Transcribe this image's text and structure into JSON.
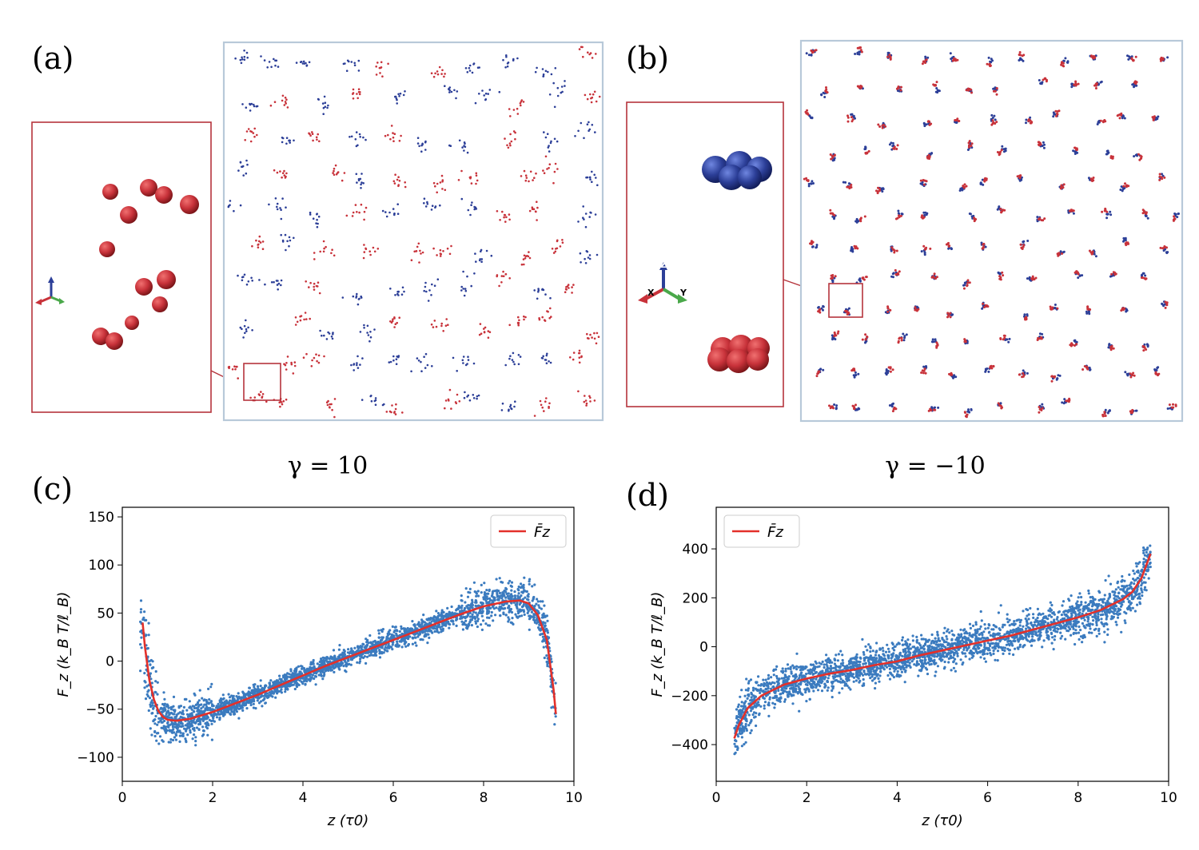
{
  "panels": {
    "a": {
      "label": "(a)",
      "gamma_label": "γ = 10"
    },
    "b": {
      "label": "(b)",
      "gamma_label": "γ = −10"
    },
    "c": {
      "label": "(c)"
    },
    "d": {
      "label": "(d)"
    }
  },
  "triad": {
    "x": "X",
    "y": "Y",
    "z": "Z"
  },
  "colors": {
    "red_ion": "#c8323a",
    "blue_ion": "#2c3f98",
    "scatter": "#3b7bbf",
    "mean_line": "#e3302a",
    "box_frame": "#b8c9d9",
    "inset_frame": "#b5343c"
  },
  "chart_data": [
    {
      "type": "scatter",
      "panel": "(c)",
      "xlabel": "z (τ0)",
      "ylabel": "F_z (k_B T/ℓ_B)",
      "xlim": [
        0,
        10
      ],
      "ylim": [
        -125,
        160
      ],
      "xticks": [
        "0",
        "2",
        "4",
        "6",
        "8",
        "10"
      ],
      "yticks": [
        "150",
        "100",
        "50",
        "0",
        "−50",
        "−100"
      ],
      "ytick_values": [
        150,
        100,
        50,
        0,
        -50,
        -100
      ],
      "legend": {
        "entries": [
          "F̄z"
        ],
        "position": "top-right"
      },
      "series": [
        {
          "name": "F̄z",
          "kind": "line",
          "x": [
            0.45,
            0.5,
            0.6,
            0.7,
            0.8,
            0.9,
            1.0,
            1.2,
            1.5,
            2.0,
            2.5,
            3.0,
            3.5,
            4.0,
            4.5,
            5.0,
            5.5,
            6.0,
            6.5,
            7.0,
            7.5,
            8.0,
            8.5,
            8.8,
            9.0,
            9.2,
            9.4,
            9.55,
            9.6
          ],
          "y": [
            40,
            15,
            -20,
            -40,
            -52,
            -58,
            -61,
            -62,
            -60,
            -53,
            -44,
            -35,
            -25,
            -15,
            -5,
            4,
            13,
            22,
            31,
            40,
            49,
            57,
            62,
            63,
            60,
            48,
            22,
            -30,
            -55
          ]
        }
      ],
      "scatter_description_fields": {
        "x_range": [
          0.4,
          9.6
        ],
        "y_band": "mean ± ~15, outliers to ±30"
      }
    },
    {
      "type": "scatter",
      "panel": "(d)",
      "xlabel": "z (τ0)",
      "ylabel": "F_z (k_B T/ℓ_B)",
      "xlim": [
        0,
        10
      ],
      "ylim": [
        -550,
        570
      ],
      "xticks": [
        "0",
        "2",
        "4",
        "6",
        "8",
        "10"
      ],
      "yticks": [
        "400",
        "200",
        "0",
        "−200",
        "−400"
      ],
      "ytick_values": [
        400,
        200,
        0,
        -200,
        -400
      ],
      "legend": {
        "entries": [
          "F̄z"
        ],
        "position": "top-left"
      },
      "series": [
        {
          "name": "F̄z",
          "kind": "line",
          "x": [
            0.4,
            0.5,
            0.7,
            1.0,
            1.5,
            2.0,
            2.5,
            3.0,
            3.5,
            4.0,
            4.5,
            5.0,
            5.5,
            6.0,
            6.5,
            7.0,
            7.5,
            8.0,
            8.5,
            9.0,
            9.2,
            9.4,
            9.5,
            9.6
          ],
          "y": [
            -375,
            -320,
            -250,
            -200,
            -155,
            -130,
            -110,
            -95,
            -75,
            -60,
            -35,
            -15,
            5,
            25,
            45,
            70,
            95,
            120,
            150,
            195,
            225,
            280,
            330,
            380
          ]
        }
      ]
    }
  ]
}
